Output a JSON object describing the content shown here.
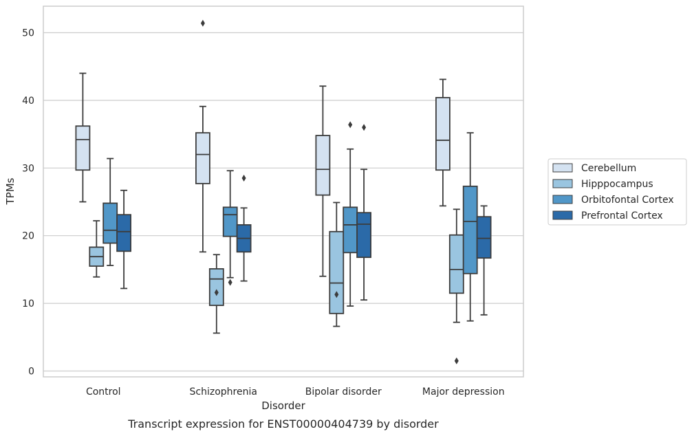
{
  "chart_data": {
    "type": "box",
    "caption": "Transcript expression for ENST00000404739 by disorder",
    "xlabel": "Disorder",
    "ylabel": "TPMs",
    "ylim": [
      -0.8,
      54
    ],
    "yticks": [
      0,
      10,
      20,
      30,
      40,
      50
    ],
    "grid": "horizontal",
    "legend_position": "right",
    "categories": [
      "Control",
      "Schizophrenia",
      "Bipolar disorder",
      "Major depression"
    ],
    "series": [
      {
        "name": "Cerebellum",
        "color": "#d4e2f1",
        "boxes": [
          {
            "whislo": 25.0,
            "q1": 29.7,
            "med": 34.2,
            "q3": 36.2,
            "whishi": 44.0,
            "fliers": []
          },
          {
            "whislo": 17.6,
            "q1": 27.7,
            "med": 32.0,
            "q3": 35.2,
            "whishi": 39.1,
            "fliers": [
              51.4
            ]
          },
          {
            "whislo": 14.0,
            "q1": 26.0,
            "med": 29.8,
            "q3": 34.8,
            "whishi": 42.1,
            "fliers": []
          },
          {
            "whislo": 24.4,
            "q1": 29.7,
            "med": 34.1,
            "q3": 40.4,
            "whishi": 43.1,
            "fliers": []
          }
        ]
      },
      {
        "name": "Hipppocampus",
        "color": "#9ac5e0",
        "boxes": [
          {
            "whislo": 13.9,
            "q1": 15.5,
            "med": 16.9,
            "q3": 18.3,
            "whishi": 22.2,
            "fliers": []
          },
          {
            "whislo": 5.6,
            "q1": 9.7,
            "med": 13.6,
            "q3": 15.1,
            "whishi": 17.2,
            "fliers": [
              11.6
            ]
          },
          {
            "whislo": 6.6,
            "q1": 8.5,
            "med": 13.0,
            "q3": 20.6,
            "whishi": 24.9,
            "fliers": [
              11.3
            ]
          },
          {
            "whislo": 7.2,
            "q1": 11.5,
            "med": 15.0,
            "q3": 20.1,
            "whishi": 23.9,
            "fliers": [
              1.5
            ]
          }
        ]
      },
      {
        "name": "Orbitofontal Cortex",
        "color": "#5197c8",
        "boxes": [
          {
            "whislo": 15.6,
            "q1": 18.9,
            "med": 20.8,
            "q3": 24.8,
            "whishi": 31.4,
            "fliers": []
          },
          {
            "whislo": 13.8,
            "q1": 19.9,
            "med": 23.1,
            "q3": 24.2,
            "whishi": 29.6,
            "fliers": [
              13.1
            ]
          },
          {
            "whislo": 9.6,
            "q1": 17.5,
            "med": 21.6,
            "q3": 24.2,
            "whishi": 32.8,
            "fliers": [
              36.4
            ]
          },
          {
            "whislo": 7.4,
            "q1": 14.4,
            "med": 22.1,
            "q3": 27.3,
            "whishi": 35.2,
            "fliers": []
          }
        ]
      },
      {
        "name": "Prefrontal Cortex",
        "color": "#2b6aa8",
        "boxes": [
          {
            "whislo": 12.2,
            "q1": 17.7,
            "med": 20.6,
            "q3": 23.1,
            "whishi": 26.7,
            "fliers": []
          },
          {
            "whislo": 13.3,
            "q1": 17.6,
            "med": 19.6,
            "q3": 21.6,
            "whishi": 24.1,
            "fliers": [
              28.5
            ]
          },
          {
            "whislo": 10.5,
            "q1": 16.8,
            "med": 21.7,
            "q3": 23.4,
            "whishi": 29.8,
            "fliers": [
              36.0
            ]
          },
          {
            "whislo": 8.3,
            "q1": 16.7,
            "med": 19.6,
            "q3": 22.8,
            "whishi": 24.4,
            "fliers": []
          }
        ]
      }
    ]
  }
}
